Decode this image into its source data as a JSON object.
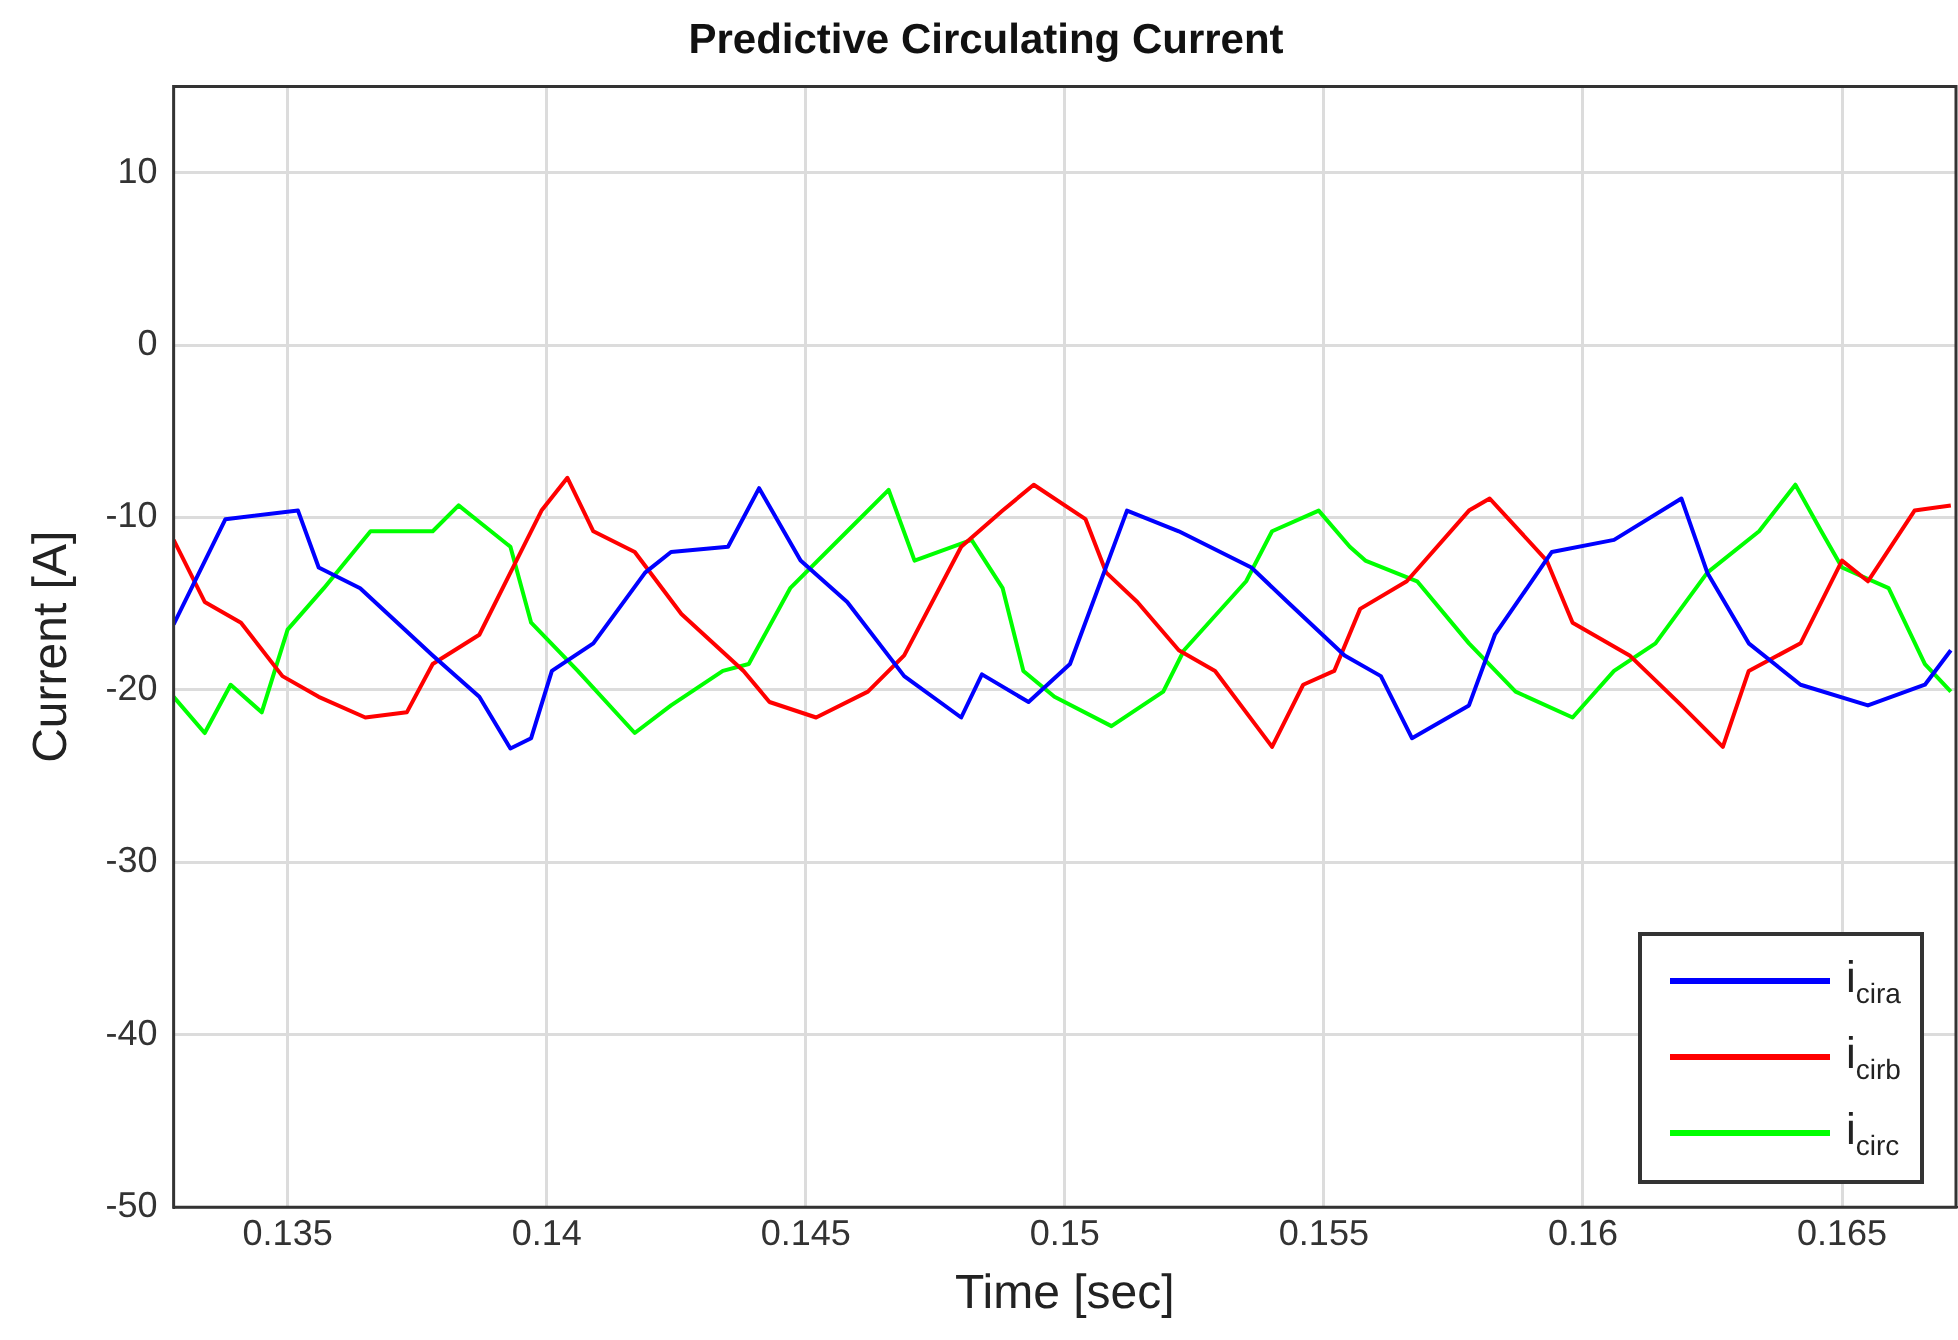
{
  "chart_data": {
    "type": "line",
    "title": "Predictive Circulating Current",
    "xlabel": "Time [sec]",
    "ylabel": "Current [A]",
    "xlim": [
      0.1328,
      0.1672
    ],
    "ylim": [
      -50,
      15
    ],
    "xticks": [
      0.135,
      0.14,
      0.145,
      0.15,
      0.155,
      0.16,
      0.165
    ],
    "yticks": [
      -50,
      -40,
      -30,
      -20,
      -10,
      0,
      10
    ],
    "grid": true,
    "legend": "bottom right",
    "marker": "none",
    "line_style": "solid",
    "series": [
      {
        "name": "i$_{cira}$",
        "color": "#0000ff",
        "x": [
          0.1328,
          0.1338,
          0.1352,
          0.1356,
          0.1364,
          0.1378,
          0.1387,
          0.1393,
          0.1397,
          0.1401,
          0.1409,
          0.1419,
          0.1424,
          0.1435,
          0.1441,
          0.1449,
          0.1458,
          0.1469,
          0.148,
          0.1484,
          0.1493,
          0.1501,
          0.1512,
          0.1522,
          0.1536,
          0.1543,
          0.1554,
          0.1561,
          0.1567,
          0.1578,
          0.1583,
          0.1594,
          0.1606,
          0.1619,
          0.1624,
          0.1632,
          0.1642,
          0.1655,
          0.1666,
          0.1671
        ],
        "values": [
          -16.2,
          -10.1,
          -9.6,
          -12.9,
          -14.1,
          -18.0,
          -20.4,
          -23.4,
          -22.8,
          -18.9,
          -17.3,
          -13.2,
          -12.0,
          -11.7,
          -8.3,
          -12.5,
          -14.9,
          -19.2,
          -21.6,
          -19.1,
          -20.7,
          -18.5,
          -9.6,
          -10.8,
          -12.9,
          -14.9,
          -18.0,
          -19.2,
          -22.8,
          -20.9,
          -16.8,
          -12.0,
          -11.3,
          -8.9,
          -13.2,
          -17.3,
          -19.7,
          -20.9,
          -19.7,
          -17.7
        ]
      },
      {
        "name": "i$_{cirb}$",
        "color": "#ff0000",
        "x": [
          0.1328,
          0.1334,
          0.1341,
          0.1349,
          0.1356,
          0.1365,
          0.1373,
          0.1378,
          0.1387,
          0.1393,
          0.1399,
          0.1404,
          0.1409,
          0.1417,
          0.1426,
          0.1438,
          0.1443,
          0.1452,
          0.1462,
          0.1469,
          0.148,
          0.1488,
          0.1494,
          0.1504,
          0.1508,
          0.1514,
          0.1522,
          0.1529,
          0.1537,
          0.154,
          0.1546,
          0.1552,
          0.1557,
          0.1566,
          0.1578,
          0.1582,
          0.1593,
          0.1598,
          0.1609,
          0.1619,
          0.1627,
          0.1632,
          0.1642,
          0.165,
          0.1655,
          0.1664,
          0.1671
        ],
        "values": [
          -11.3,
          -14.9,
          -16.1,
          -19.2,
          -20.4,
          -21.6,
          -21.3,
          -18.5,
          -16.8,
          -13.2,
          -9.6,
          -7.7,
          -10.8,
          -12.0,
          -15.6,
          -18.9,
          -20.7,
          -21.6,
          -20.1,
          -18.0,
          -11.7,
          -9.6,
          -8.1,
          -10.1,
          -13.2,
          -14.9,
          -17.7,
          -18.9,
          -22.1,
          -23.3,
          -19.7,
          -18.9,
          -15.3,
          -13.7,
          -9.6,
          -8.9,
          -12.5,
          -16.1,
          -18.0,
          -20.9,
          -23.3,
          -18.9,
          -17.3,
          -12.5,
          -13.7,
          -9.6,
          -9.3
        ]
      },
      {
        "name": "i$_{circ}$",
        "color": "#00ff00",
        "x": [
          0.1328,
          0.1334,
          0.1339,
          0.1345,
          0.135,
          0.1357,
          0.1366,
          0.1378,
          0.1383,
          0.1393,
          0.1397,
          0.1406,
          0.1417,
          0.1424,
          0.1434,
          0.1439,
          0.1447,
          0.1458,
          0.1466,
          0.1471,
          0.1482,
          0.1488,
          0.1492,
          0.1498,
          0.1509,
          0.1519,
          0.1523,
          0.1535,
          0.154,
          0.1549,
          0.1555,
          0.1558,
          0.1568,
          0.1578,
          0.1587,
          0.1598,
          0.1606,
          0.1614,
          0.1624,
          0.1634,
          0.1641,
          0.1646,
          0.165,
          0.1659,
          0.1666,
          0.1671
        ],
        "values": [
          -20.4,
          -22.5,
          -19.7,
          -21.3,
          -16.5,
          -14.1,
          -10.8,
          -10.8,
          -9.3,
          -11.7,
          -16.1,
          -18.9,
          -22.5,
          -20.9,
          -18.9,
          -18.5,
          -14.1,
          -10.8,
          -8.4,
          -12.5,
          -11.3,
          -14.1,
          -18.9,
          -20.4,
          -22.1,
          -20.1,
          -17.7,
          -13.7,
          -10.8,
          -9.6,
          -11.7,
          -12.5,
          -13.7,
          -17.3,
          -20.1,
          -21.6,
          -18.9,
          -17.3,
          -13.2,
          -10.8,
          -8.1,
          -10.8,
          -12.9,
          -14.1,
          -18.5,
          -20.1
        ]
      }
    ]
  }
}
